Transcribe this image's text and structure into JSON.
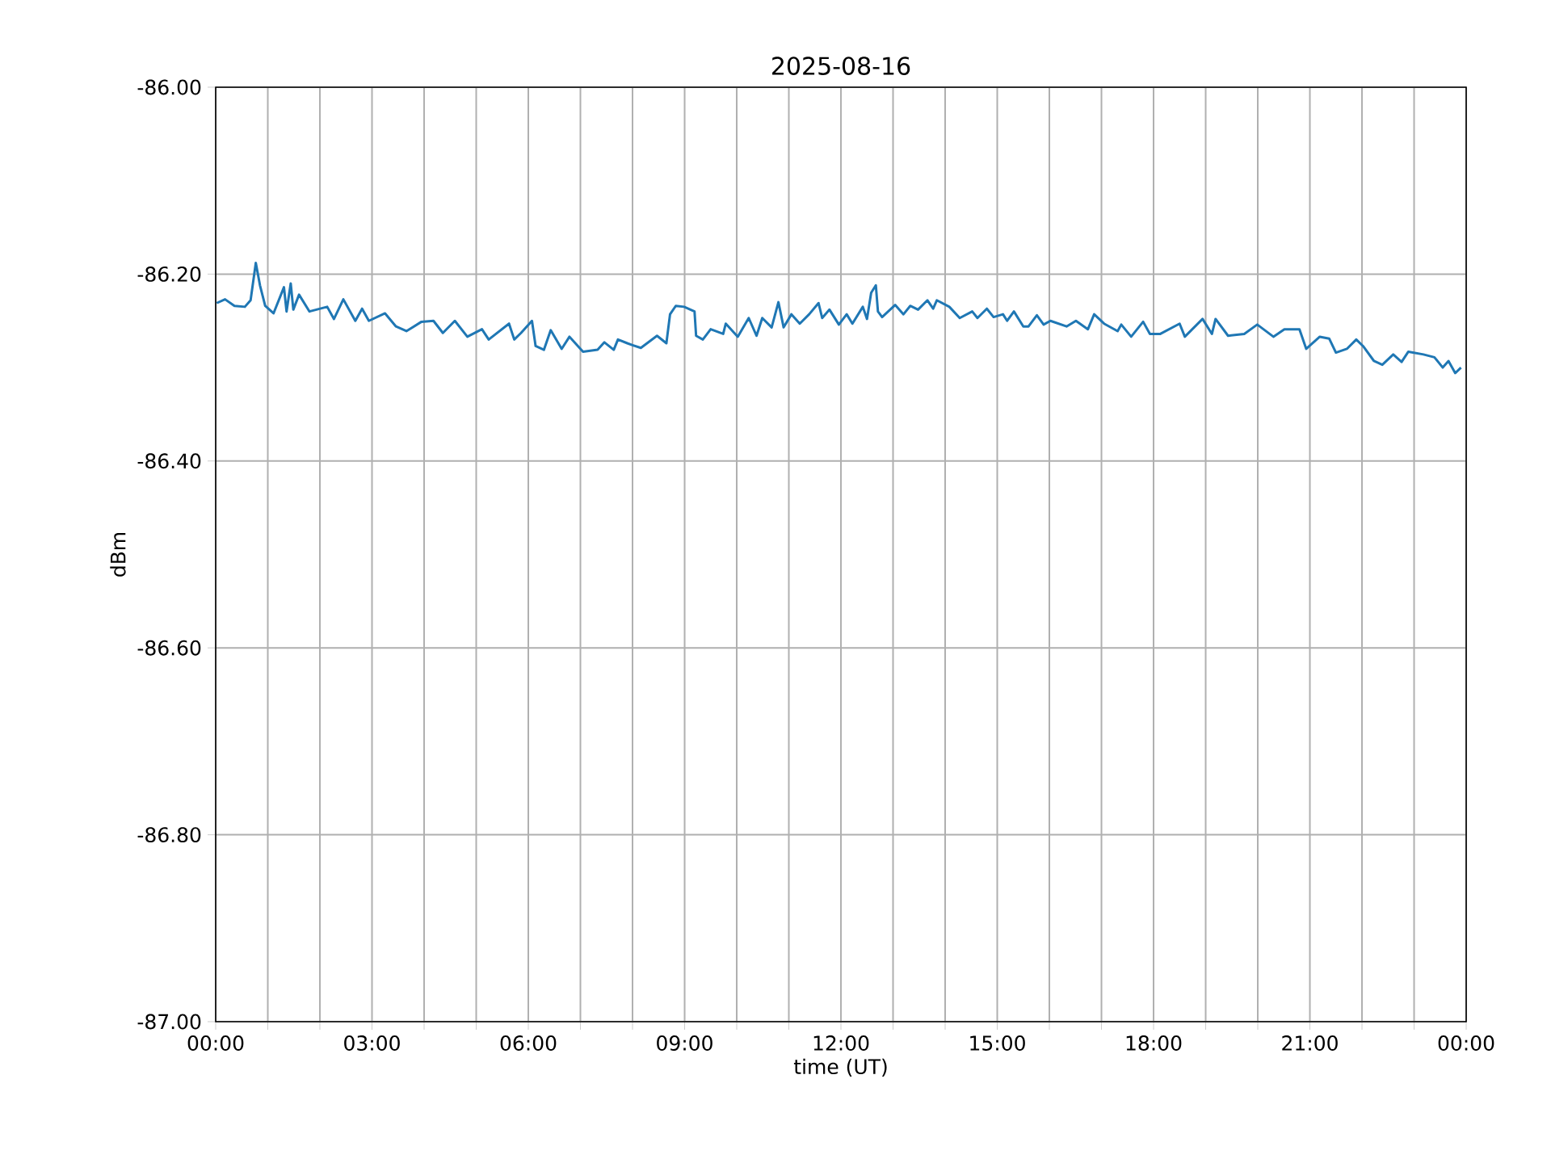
{
  "chart_data": {
    "type": "line",
    "title": "2025-08-16",
    "xlabel": "time (UT)",
    "ylabel": "dBm",
    "grid": true,
    "marker": "none",
    "line_style": "solid",
    "xlim": [
      0,
      24
    ],
    "ylim": [
      -87,
      -86
    ],
    "xticks": [
      {
        "value": 0,
        "label": "00:00"
      },
      {
        "value": 1,
        "label": null
      },
      {
        "value": 2,
        "label": null
      },
      {
        "value": 3,
        "label": "03:00"
      },
      {
        "value": 4,
        "label": null
      },
      {
        "value": 5,
        "label": null
      },
      {
        "value": 6,
        "label": "06:00"
      },
      {
        "value": 7,
        "label": null
      },
      {
        "value": 8,
        "label": null
      },
      {
        "value": 9,
        "label": "09:00"
      },
      {
        "value": 10,
        "label": null
      },
      {
        "value": 11,
        "label": null
      },
      {
        "value": 12,
        "label": "12:00"
      },
      {
        "value": 13,
        "label": null
      },
      {
        "value": 14,
        "label": null
      },
      {
        "value": 15,
        "label": "15:00"
      },
      {
        "value": 16,
        "label": null
      },
      {
        "value": 17,
        "label": null
      },
      {
        "value": 18,
        "label": "18:00"
      },
      {
        "value": 19,
        "label": null
      },
      {
        "value": 20,
        "label": null
      },
      {
        "value": 21,
        "label": "21:00"
      },
      {
        "value": 22,
        "label": null
      },
      {
        "value": 23,
        "label": null
      },
      {
        "value": 24,
        "label": "00:00"
      }
    ],
    "yticks": [
      {
        "value": -87,
        "label": "-87.00"
      },
      {
        "value": -86.8,
        "label": "-86.80"
      },
      {
        "value": -86.6,
        "label": "-86.60"
      },
      {
        "value": -86.4,
        "label": "-86.40"
      },
      {
        "value": -86.2,
        "label": "-86.20"
      },
      {
        "value": -86,
        "label": "-86.00"
      }
    ],
    "series": [
      {
        "color": "#1f77b4",
        "x": [
          0.02,
          0.18,
          0.36,
          0.56,
          0.67,
          0.77,
          0.85,
          0.95,
          1.11,
          1.31,
          1.36,
          1.44,
          1.49,
          1.6,
          1.8,
          2.14,
          2.27,
          2.45,
          2.68,
          2.81,
          2.94,
          3.25,
          3.46,
          3.66,
          3.95,
          4.18,
          4.36,
          4.59,
          4.83,
          5.11,
          5.24,
          5.63,
          5.73,
          5.86,
          6.07,
          6.14,
          6.3,
          6.43,
          6.64,
          6.79,
          7.05,
          7.33,
          7.46,
          7.64,
          7.72,
          7.9,
          8.0,
          8.16,
          8.47,
          8.65,
          8.72,
          8.83,
          8.99,
          9.19,
          9.22,
          9.35,
          9.5,
          9.74,
          9.79,
          10.02,
          10.23,
          10.38,
          10.49,
          10.67,
          10.8,
          10.9,
          11.05,
          11.21,
          11.39,
          11.57,
          11.64,
          11.78,
          11.96,
          12.11,
          12.22,
          12.42,
          12.5,
          12.58,
          12.67,
          12.71,
          12.79,
          13.04,
          13.2,
          13.33,
          13.48,
          13.66,
          13.77,
          13.84,
          14.08,
          14.28,
          14.52,
          14.62,
          14.8,
          14.93,
          15.11,
          15.19,
          15.32,
          15.5,
          15.6,
          15.76,
          15.89,
          16.02,
          16.33,
          16.51,
          16.74,
          16.86,
          17.05,
          17.31,
          17.38,
          17.57,
          17.8,
          17.93,
          18.13,
          18.5,
          18.6,
          18.94,
          19.12,
          19.19,
          19.43,
          19.74,
          19.99,
          20.3,
          20.51,
          20.8,
          20.93,
          21.19,
          21.37,
          21.5,
          21.71,
          21.89,
          22.02,
          22.23,
          22.39,
          22.6,
          22.76,
          22.89,
          23.18,
          23.39,
          23.55,
          23.66,
          23.79,
          23.9
        ],
        "values": [
          -86.231,
          -86.227,
          -86.234,
          -86.235,
          -86.228,
          -86.188,
          -86.212,
          -86.234,
          -86.242,
          -86.214,
          -86.24,
          -86.21,
          -86.238,
          -86.222,
          -86.24,
          -86.235,
          -86.248,
          -86.227,
          -86.25,
          -86.237,
          -86.25,
          -86.242,
          -86.256,
          -86.261,
          -86.251,
          -86.25,
          -86.263,
          -86.25,
          -86.267,
          -86.259,
          -86.27,
          -86.253,
          -86.27,
          -86.263,
          -86.25,
          -86.277,
          -86.281,
          -86.26,
          -86.28,
          -86.267,
          -86.283,
          -86.281,
          -86.273,
          -86.281,
          -86.27,
          -86.274,
          -86.276,
          -86.279,
          -86.266,
          -86.274,
          -86.243,
          -86.234,
          -86.235,
          -86.24,
          -86.266,
          -86.27,
          -86.259,
          -86.264,
          -86.253,
          -86.267,
          -86.247,
          -86.266,
          -86.247,
          -86.257,
          -86.23,
          -86.257,
          -86.243,
          -86.253,
          -86.243,
          -86.231,
          -86.247,
          -86.238,
          -86.254,
          -86.243,
          -86.253,
          -86.235,
          -86.248,
          -86.22,
          -86.212,
          -86.24,
          -86.246,
          -86.233,
          -86.243,
          -86.234,
          -86.238,
          -86.228,
          -86.237,
          -86.228,
          -86.235,
          -86.247,
          -86.24,
          -86.247,
          -86.237,
          -86.246,
          -86.243,
          -86.25,
          -86.24,
          -86.256,
          -86.256,
          -86.244,
          -86.254,
          -86.25,
          -86.256,
          -86.25,
          -86.259,
          -86.243,
          -86.253,
          -86.261,
          -86.254,
          -86.267,
          -86.251,
          -86.264,
          -86.264,
          -86.253,
          -86.267,
          -86.248,
          -86.264,
          -86.248,
          -86.266,
          -86.264,
          -86.254,
          -86.267,
          -86.259,
          -86.259,
          -86.28,
          -86.267,
          -86.269,
          -86.284,
          -86.28,
          -86.27,
          -86.277,
          -86.293,
          -86.297,
          -86.286,
          -86.294,
          -86.283,
          -86.286,
          -86.289,
          -86.3,
          -86.293,
          -86.306,
          -86.3
        ]
      }
    ]
  }
}
